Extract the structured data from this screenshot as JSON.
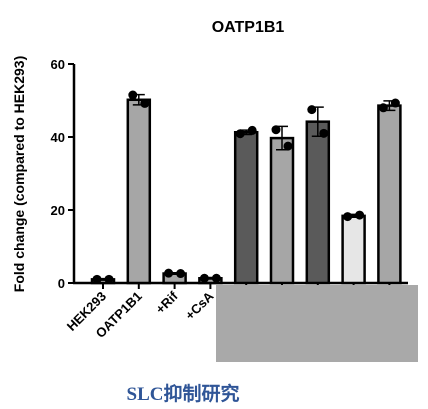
{
  "chart_data": {
    "type": "bar",
    "title": "OATP1B1",
    "y_label": "Fold change (compared to HEK293)",
    "categories": [
      "HEK293",
      "OATP1B1",
      "+Rif",
      "+CsA",
      null,
      null,
      null,
      null,
      null
    ],
    "values": [
      1,
      50.2,
      2.6,
      1.3,
      41.3,
      39.7,
      44.2,
      18.4,
      48.6
    ],
    "errors": [
      0.2,
      1.4,
      0.2,
      0.2,
      0.6,
      3.2,
      4,
      0.4,
      1.3
    ],
    "points": [
      [
        1,
        1
      ],
      [
        51.5,
        49.2
      ],
      [
        2.7,
        2.6
      ],
      [
        1.3,
        1.3
      ],
      [
        40.9,
        41.8
      ],
      [
        42,
        37.5
      ],
      [
        47.5,
        41
      ],
      [
        18.2,
        18.6
      ],
      [
        48,
        49.3
      ]
    ],
    "colors": [
      "#bdbdbd",
      "#a6a6a6",
      "#a6a6a6",
      "#a6a6a6",
      "#5a5a5a",
      "#a6a6a6",
      "#5a5a5a",
      "#e6e6e6",
      "#a6a6a6"
    ],
    "ylim": [
      0,
      60
    ],
    "yticks": [
      0,
      20,
      40,
      60
    ],
    "caption": "SLC抑制研究"
  }
}
